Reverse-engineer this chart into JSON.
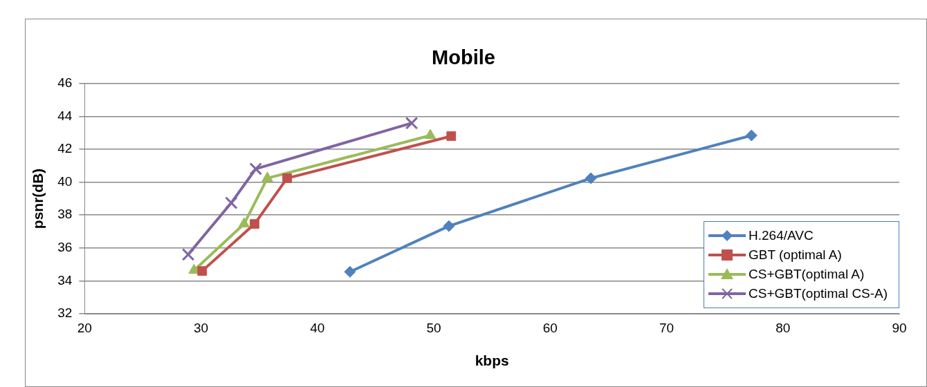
{
  "chart_data": {
    "type": "line",
    "title": "Mobile",
    "xlabel": "kbps",
    "ylabel": "psnr(dB)",
    "xlim": [
      20,
      90
    ],
    "xticks": [
      20,
      30,
      40,
      50,
      60,
      70,
      80,
      90
    ],
    "ylim": [
      32,
      46
    ],
    "yticks": [
      32,
      34,
      36,
      38,
      40,
      42,
      44,
      46
    ],
    "grid": "y",
    "legend": "bottom right",
    "series": [
      {
        "name": "H.264/AVC",
        "color": "#4f81bd",
        "marker": "diamond",
        "x": [
          42.8,
          51.3,
          63.5,
          77.3
        ],
        "values": [
          34.55,
          37.33,
          40.24,
          42.84
        ]
      },
      {
        "name": "GBT (optimal A)",
        "color": "#c0504d",
        "marker": "square",
        "x": [
          30.1,
          34.6,
          37.4,
          51.5
        ],
        "values": [
          34.6,
          37.46,
          40.24,
          42.8
        ]
      },
      {
        "name": "CS+GBT(optimal A)",
        "color": "#9bbb59",
        "marker": "triangle",
        "x": [
          29.4,
          33.7,
          35.7,
          49.7
        ],
        "values": [
          34.64,
          37.46,
          40.24,
          42.84
        ]
      },
      {
        "name": "CS+GBT(optimal CS-A)",
        "color": "#8064a2",
        "marker": "cross",
        "x": [
          28.9,
          32.6,
          34.7,
          48.1
        ],
        "values": [
          35.6,
          38.74,
          40.81,
          43.59
        ]
      }
    ]
  }
}
